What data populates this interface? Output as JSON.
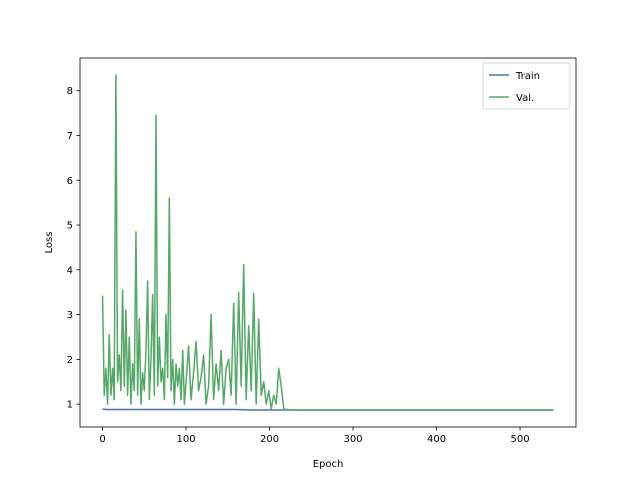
{
  "chart_data": {
    "type": "line",
    "xlabel": "Epoch",
    "ylabel": "Loss",
    "xlim": [
      -27,
      567
    ],
    "ylim": [
      0.49,
      8.73
    ],
    "xticks": [
      0,
      100,
      200,
      300,
      400,
      500
    ],
    "yticks": [
      1,
      2,
      3,
      4,
      5,
      6,
      7,
      8
    ],
    "grid": false,
    "legend_position": "top-right",
    "series": [
      {
        "name": "Train",
        "color": "#4c72b0",
        "x": [
          0,
          5,
          20,
          40,
          60,
          80,
          100,
          120,
          140,
          160,
          180,
          200,
          220,
          300,
          400,
          500,
          540
        ],
        "values": [
          0.89,
          0.88,
          0.88,
          0.88,
          0.88,
          0.88,
          0.88,
          0.88,
          0.88,
          0.88,
          0.87,
          0.87,
          0.87,
          0.87,
          0.87,
          0.87,
          0.87
        ]
      },
      {
        "name": "Val.",
        "color": "#55a868",
        "x": [
          0,
          2,
          4,
          6,
          8,
          10,
          12,
          14,
          16,
          18,
          20,
          22,
          24,
          26,
          28,
          30,
          32,
          34,
          36,
          38,
          40,
          42,
          44,
          46,
          48,
          50,
          52,
          54,
          56,
          58,
          60,
          62,
          64,
          66,
          68,
          70,
          72,
          74,
          76,
          78,
          80,
          82,
          84,
          86,
          88,
          90,
          92,
          94,
          96,
          98,
          100,
          103,
          106,
          109,
          112,
          115,
          118,
          121,
          124,
          127,
          130,
          133,
          136,
          139,
          142,
          145,
          148,
          151,
          154,
          157,
          160,
          163,
          166,
          169,
          172,
          175,
          178,
          181,
          184,
          187,
          190,
          193,
          196,
          199,
          202,
          205,
          208,
          211,
          214,
          217,
          219,
          221,
          230,
          260,
          300,
          350,
          400,
          450,
          500,
          540
        ],
        "values": [
          3.42,
          1.2,
          1.8,
          1.0,
          2.55,
          1.2,
          1.8,
          1.1,
          8.35,
          1.5,
          2.1,
          1.3,
          3.55,
          1.4,
          3.1,
          1.2,
          2.5,
          1.0,
          1.9,
          1.3,
          4.85,
          1.2,
          2.9,
          1.0,
          1.7,
          1.3,
          2.2,
          3.75,
          1.1,
          2.0,
          3.45,
          1.2,
          7.45,
          1.4,
          2.5,
          1.5,
          1.8,
          1.1,
          3.0,
          1.6,
          5.6,
          1.3,
          2.0,
          1.0,
          1.9,
          1.4,
          1.8,
          1.1,
          2.2,
          1.0,
          1.5,
          2.3,
          1.1,
          1.7,
          2.4,
          1.3,
          1.6,
          2.1,
          1.0,
          1.4,
          3.0,
          1.1,
          1.9,
          1.3,
          2.2,
          1.0,
          1.8,
          2.0,
          1.2,
          3.25,
          1.0,
          3.5,
          1.4,
          4.12,
          1.1,
          2.75,
          1.3,
          3.47,
          1.0,
          2.9,
          1.2,
          1.5,
          1.0,
          1.3,
          0.9,
          1.2,
          1.0,
          1.8,
          1.4,
          0.9,
          0.88,
          0.88,
          0.87,
          0.87,
          0.87,
          0.87,
          0.87,
          0.87,
          0.87,
          0.87
        ]
      }
    ]
  }
}
